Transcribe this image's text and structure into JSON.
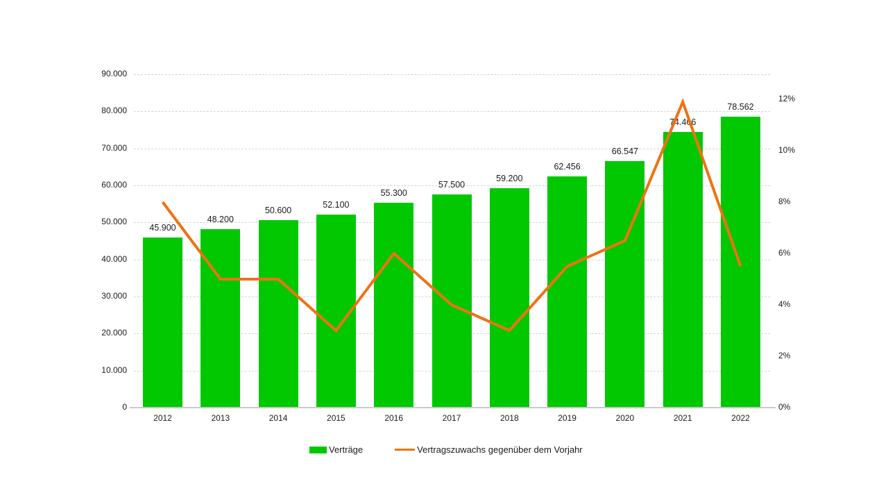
{
  "page": {
    "background_color": "#ffffff",
    "text_color": "#1a1a1a"
  },
  "chart_data": {
    "type": "bar+line",
    "title": "",
    "categories": [
      "2012",
      "2013",
      "2014",
      "2015",
      "2016",
      "2017",
      "2018",
      "2019",
      "2020",
      "2021",
      "2022"
    ],
    "series": [
      {
        "name": "Verträge",
        "type": "bar",
        "color": "#02c802",
        "values": [
          45900,
          48200,
          50600,
          52100,
          55300,
          57500,
          59200,
          62456,
          66547,
          74466,
          78562
        ],
        "value_labels": [
          "45.900",
          "48.200",
          "50.600",
          "52.100",
          "55.300",
          "57.500",
          "59.200",
          "62.456",
          "66.547",
          "74.466",
          "78.562"
        ],
        "axis": "left"
      },
      {
        "name": "Vertragszuwachs gegenüber dem Vorjahr",
        "type": "line",
        "color": "#ef7212",
        "values": [
          8.0,
          5.0,
          5.0,
          3.0,
          6.0,
          4.0,
          3.0,
          5.5,
          6.5,
          11.9,
          5.5
        ],
        "unit": "%",
        "axis": "right"
      }
    ],
    "left_axis": {
      "min": 0,
      "max": 90000,
      "step": 10000,
      "tick_labels": [
        "0",
        "10.000",
        "20.000",
        "30.000",
        "40.000",
        "50.000",
        "60.000",
        "70.000",
        "80.000",
        "90.000"
      ]
    },
    "right_axis": {
      "min": 0,
      "max": 12,
      "step": 2,
      "tick_labels": [
        "0%",
        "2%",
        "4%",
        "6%",
        "8%",
        "10%",
        "12%"
      ]
    },
    "grid": true,
    "legend_position": "bottom",
    "legend": {
      "items": [
        {
          "label": "Verträge",
          "color": "#02c802",
          "marker": "rect"
        },
        {
          "label": "Vertragszuwachs gegenüber dem Vorjahr",
          "color": "#ef7212",
          "marker": "line"
        }
      ]
    }
  }
}
